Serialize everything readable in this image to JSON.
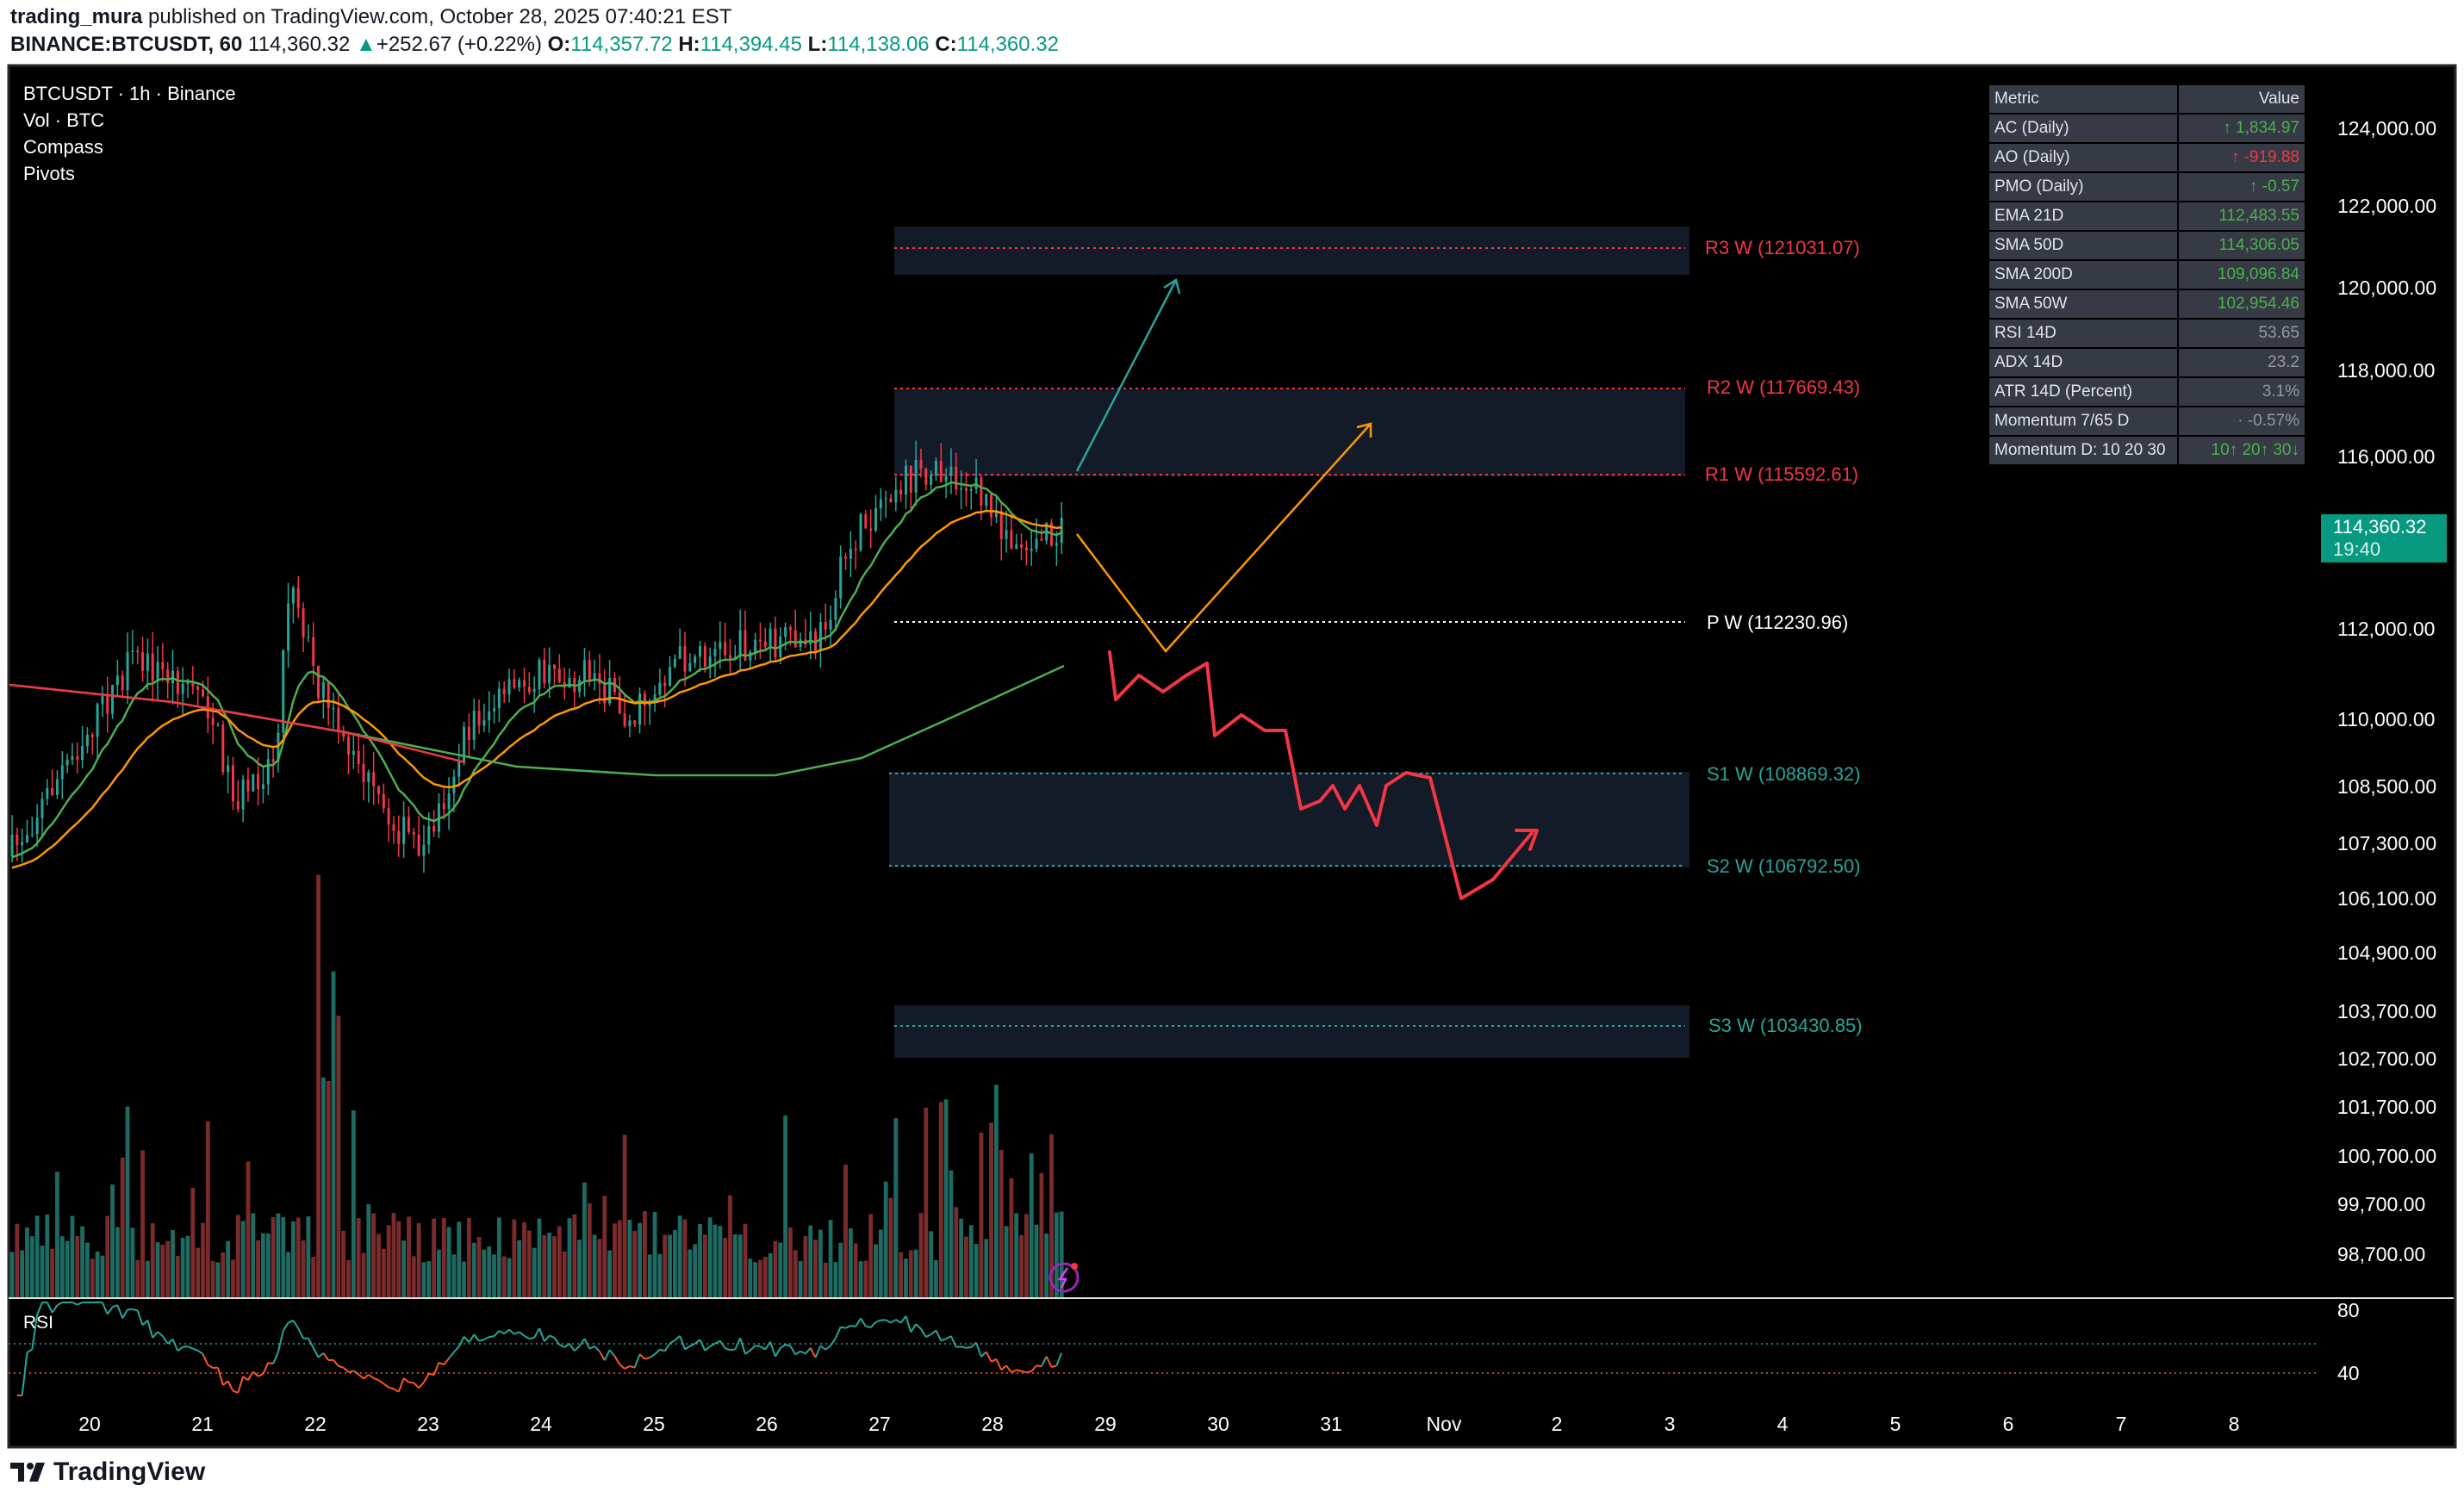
{
  "header": {
    "author": "trading_mura",
    "published_text": "published on TradingView.com, October 28, 2025 07:40:21 EST",
    "symbol": "BINANCE:BTCUSDT, 60",
    "last": "114,360.32",
    "change": "+252.67 (+0.22%)",
    "o_label": "O:",
    "o": "114,357.72",
    "h_label": "H:",
    "h": "114,394.45",
    "l_label": "L:",
    "l": "114,138.06",
    "c_label": "C:",
    "c": "114,360.32"
  },
  "legend": [
    "BTCUSDT · 1h · Binance",
    "Vol · BTC",
    "Compass",
    "Pivots"
  ],
  "metrics_table": {
    "headers": [
      "Metric",
      "Value"
    ],
    "rows": [
      {
        "metric": "AC (Daily)",
        "value": "↑ 1,834.97",
        "tone": "pos"
      },
      {
        "metric": "AO (Daily)",
        "value": "↑ -919.88",
        "tone": "neg"
      },
      {
        "metric": "PMO (Daily)",
        "value": "↑ -0.57",
        "tone": "pos"
      },
      {
        "metric": "EMA 21D",
        "value": "112,483.55",
        "tone": "pos"
      },
      {
        "metric": "SMA 50D",
        "value": "114,306.05",
        "tone": "pos"
      },
      {
        "metric": "SMA 200D",
        "value": "109,096.84",
        "tone": "pos"
      },
      {
        "metric": "SMA 50W",
        "value": "102,954.46",
        "tone": "pos"
      },
      {
        "metric": "RSI 14D",
        "value": "53.65",
        "tone": "neu"
      },
      {
        "metric": "ADX 14D",
        "value": "23.2",
        "tone": "neu"
      },
      {
        "metric": "ATR 14D (Percent)",
        "value": "3.1%",
        "tone": "neu"
      },
      {
        "metric": "Momentum 7/65 D",
        "value": "· -0.57%",
        "tone": "neu"
      },
      {
        "metric": "Momentum D: 10 20 30",
        "value": "10↑  20↑  30↓",
        "tone": "pos"
      }
    ]
  },
  "pivots": {
    "r3": "R3 W (121031.07)",
    "r2": "R2 W (117669.43)",
    "r1": "R1 W (115592.61)",
    "p": "P W (112230.96)",
    "s1": "S1 W (108869.32)",
    "s2": "S2 W (106792.50)",
    "s3": "S3 W (103430.85)"
  },
  "price_axis": [
    "124,000.00",
    "122,000.00",
    "120,000.00",
    "118,000.00",
    "116,000.00",
    "112,000.00",
    "110,000.00",
    "108,500.00",
    "107,300.00",
    "106,100.00",
    "104,900.00",
    "103,700.00",
    "102,700.00",
    "101,700.00",
    "100,700.00",
    "99,700.00",
    "98,700.00"
  ],
  "current_price": {
    "price": "114,360.32",
    "countdown": "19:40"
  },
  "rsi": {
    "label": "RSI",
    "upper": "80",
    "lower": "40"
  },
  "time_axis": [
    "20",
    "21",
    "22",
    "23",
    "24",
    "25",
    "26",
    "27",
    "28",
    "29",
    "30",
    "31",
    "Nov",
    "2",
    "3",
    "4",
    "5",
    "6",
    "7",
    "8"
  ],
  "footer": {
    "brand": "TradingView"
  },
  "colors": {
    "up": "#26a69a",
    "down": "#f23645",
    "accent": "#089981",
    "zone": "#131a28"
  }
}
